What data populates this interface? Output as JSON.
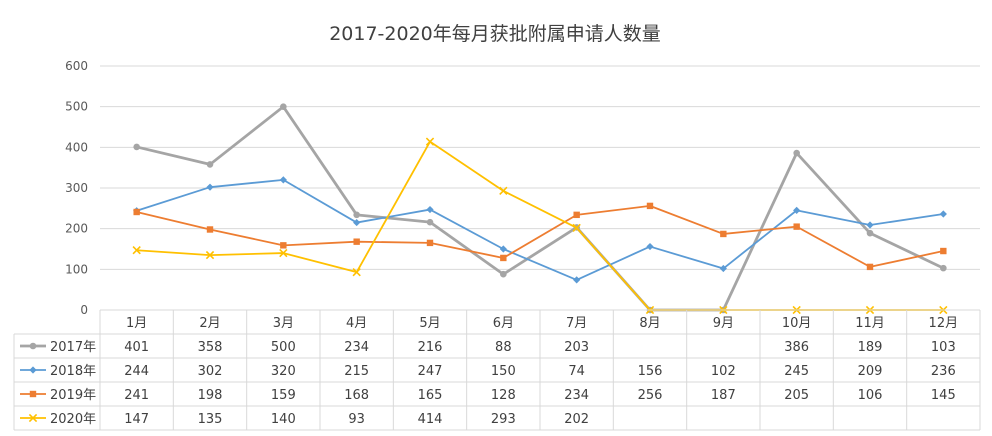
{
  "chart_data": {
    "type": "line",
    "title": "2017-2020年每月获批附属申请人数量",
    "categories": [
      "1月",
      "2月",
      "3月",
      "4月",
      "5月",
      "6月",
      "7月",
      "8月",
      "9月",
      "10月",
      "11月",
      "12月"
    ],
    "ylim": [
      0,
      600
    ],
    "yticks": [
      0,
      100,
      200,
      300,
      400,
      500,
      600
    ],
    "grid": true,
    "legend": "data-table",
    "series": [
      {
        "name": "2017年",
        "color": "#a5a5a5",
        "marker": "circle",
        "values": [
          401,
          358,
          500,
          234,
          216,
          88,
          203,
          0,
          0,
          386,
          189,
          103
        ],
        "table": [
          "401",
          "358",
          "500",
          "234",
          "216",
          "88",
          "203",
          "",
          "",
          "386",
          "189",
          "103"
        ]
      },
      {
        "name": "2018年",
        "color": "#5b9bd5",
        "marker": "diamond",
        "values": [
          244,
          302,
          320,
          215,
          247,
          150,
          74,
          156,
          102,
          245,
          209,
          236
        ],
        "table": [
          "244",
          "302",
          "320",
          "215",
          "247",
          "150",
          "74",
          "156",
          "102",
          "245",
          "209",
          "236"
        ]
      },
      {
        "name": "2019年",
        "color": "#ed7d31",
        "marker": "square",
        "values": [
          241,
          198,
          159,
          168,
          165,
          128,
          234,
          256,
          187,
          205,
          106,
          145
        ],
        "table": [
          "241",
          "198",
          "159",
          "168",
          "165",
          "128",
          "234",
          "256",
          "187",
          "205",
          "106",
          "145"
        ]
      },
      {
        "name": "2020年",
        "color": "#ffc000",
        "marker": "x",
        "values": [
          147,
          135,
          140,
          93,
          414,
          293,
          202,
          0,
          0,
          0,
          0,
          0
        ],
        "table": [
          "147",
          "135",
          "140",
          "93",
          "414",
          "293",
          "202",
          "",
          "",
          "",
          "",
          ""
        ]
      }
    ]
  }
}
